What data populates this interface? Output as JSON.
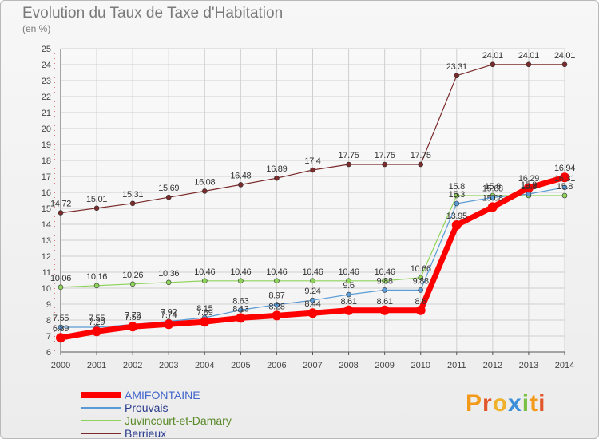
{
  "header": {
    "title": "Evolution du Taux de Taxe d'Habitation",
    "unit": "(en %)"
  },
  "logo": {
    "letters": [
      "P",
      "r",
      "o",
      "x",
      "i",
      "t",
      "i"
    ],
    "colors": [
      "#f39a1a",
      "#e2562b",
      "#f0b12a",
      "#3a8fd8",
      "#7ac143",
      "#f39a1a",
      "#e2562b"
    ]
  },
  "colors": {
    "AMIFONTAINE": "#ff0000",
    "Prouvais": "#5b9bd5",
    "Juvincourt-et-Damary": "#8fd45a",
    "Berrieux": "#7b2b2b",
    "grid": "#cfcfcf",
    "axis": "#555555",
    "text": "#444444",
    "y_tick_red": "#d00000"
  },
  "chart_data": {
    "type": "line",
    "title": "Evolution du Taux de Taxe d'Habitation",
    "ylabel": "(en %)",
    "xlabel": "",
    "x": [
      "2000",
      "2001",
      "2002",
      "2003",
      "2004",
      "2005",
      "2006",
      "2007",
      "2008",
      "2009",
      "2010",
      "2011",
      "2012",
      "2013",
      "2014"
    ],
    "ylim": [
      6,
      25
    ],
    "yticks": [
      6,
      7,
      8,
      9,
      10,
      11,
      12,
      13,
      14,
      15,
      16,
      17,
      18,
      19,
      20,
      21,
      22,
      23,
      24,
      25
    ],
    "grid": true,
    "legend_position": "bottom-left",
    "series": [
      {
        "name": "AMIFONTAINE",
        "values": [
          6.89,
          7.29,
          7.59,
          7.74,
          7.89,
          8.13,
          8.28,
          8.44,
          8.61,
          8.61,
          8.61,
          13.95,
          15.08,
          16.29,
          16.94
        ],
        "labels": [
          "6.89",
          "7.29",
          "7.59",
          "7.74",
          "7.89",
          "8.13",
          "8.28",
          "8.44",
          "8.61",
          "8.61",
          "8.6",
          "13.95",
          "15.08",
          "16.29",
          "16.94"
        ]
      },
      {
        "name": "Prouvais",
        "values": [
          7.55,
          7.55,
          7.72,
          7.92,
          8.15,
          8.63,
          8.97,
          9.24,
          9.6,
          9.88,
          9.88,
          15.3,
          15.68,
          15.9,
          16.31
        ],
        "labels": [
          "7.55",
          "7.55",
          "7.72",
          "7.92",
          "8.15",
          "8.63",
          "8.97",
          "9.24",
          "9.6",
          "9.88",
          "9.88",
          "15.3",
          "15.68",
          "15.9",
          "16.31"
        ]
      },
      {
        "name": "Juvincourt-et-Damary",
        "values": [
          10.06,
          10.16,
          10.26,
          10.36,
          10.46,
          10.46,
          10.46,
          10.46,
          10.46,
          10.46,
          10.66,
          15.8,
          15.8,
          15.8,
          15.8
        ],
        "labels": [
          "10.06",
          "10.16",
          "10.26",
          "10.36",
          "10.46",
          "10.46",
          "10.46",
          "10.46",
          "10.46",
          "10.46",
          "10.66",
          "15.8",
          "15.8",
          "15.8",
          "15.8"
        ]
      },
      {
        "name": "Berrieux",
        "values": [
          14.72,
          15.01,
          15.31,
          15.69,
          16.08,
          16.48,
          16.89,
          17.4,
          17.75,
          17.75,
          17.75,
          23.31,
          24.01,
          24.01,
          24.01
        ],
        "labels": [
          "14.72",
          "15.01",
          "15.31",
          "15.69",
          "16.08",
          "16.48",
          "16.89",
          "17.4",
          "17.75",
          "17.75",
          "17.75",
          "23.31",
          "24.01",
          "24.01",
          "24.01"
        ]
      }
    ]
  }
}
